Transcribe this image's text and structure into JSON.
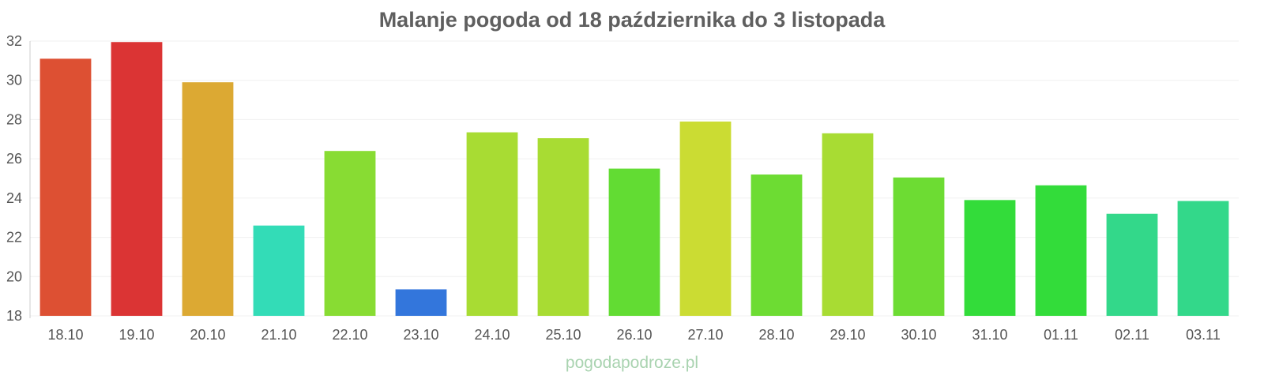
{
  "title": "Malanje pogoda od 18 października do 3 listopada",
  "watermark": "pogodapodroze.pl",
  "chart_data": {
    "type": "bar",
    "title": "Malanje pogoda od 18 października do 3 listopada",
    "xlabel": "",
    "ylabel": "",
    "ylim": [
      18,
      32
    ],
    "yticks": [
      18,
      20,
      22,
      24,
      26,
      28,
      30,
      32
    ],
    "grid": true,
    "categories": [
      "18.10",
      "19.10",
      "20.10",
      "21.10",
      "22.10",
      "23.10",
      "24.10",
      "25.10",
      "26.10",
      "27.10",
      "28.10",
      "29.10",
      "30.10",
      "31.10",
      "01.11",
      "02.11",
      "03.11"
    ],
    "values": [
      31.1,
      31.95,
      29.9,
      22.6,
      26.4,
      19.35,
      27.35,
      27.05,
      25.5,
      27.9,
      25.2,
      27.3,
      25.05,
      23.9,
      24.65,
      23.2,
      23.85
    ],
    "colors": [
      "#dd5033",
      "#db3434",
      "#dca933",
      "#33dcb7",
      "#88dc33",
      "#3376dc",
      "#a8dc33",
      "#a8dc33",
      "#62dc33",
      "#cbdc33",
      "#6ddc33",
      "#a8dc33",
      "#6ddc33",
      "#33dc3a",
      "#33dc3a",
      "#33d88a",
      "#33d88a"
    ]
  }
}
